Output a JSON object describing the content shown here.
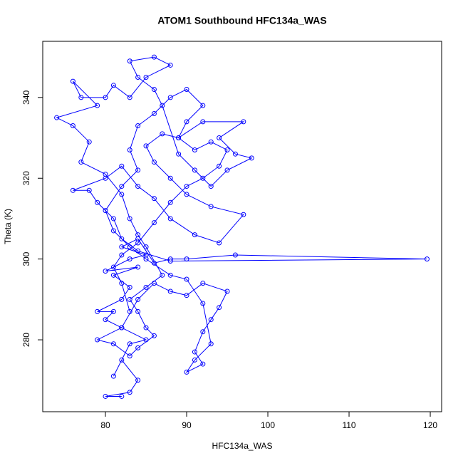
{
  "chart_data": {
    "type": "line",
    "title": "ATOM1 Southbound HFC134a_WAS",
    "x_label": "HFC134a_WAS",
    "y_label": "Theta (K)",
    "color": "#0000ff",
    "markers": true,
    "x": [
      82,
      80,
      83,
      84,
      82,
      81,
      83,
      85,
      82,
      80,
      81,
      79,
      82,
      83,
      81,
      84,
      80,
      83,
      85,
      82,
      84,
      86,
      88,
      90,
      96,
      119.6,
      88,
      84,
      82,
      81,
      79,
      78,
      76,
      80,
      82,
      84,
      86,
      88,
      91,
      94,
      97,
      93,
      90,
      88,
      86,
      85,
      87,
      89,
      92,
      97,
      94,
      96,
      98,
      95,
      93,
      91,
      89,
      87,
      86,
      84,
      83,
      86,
      88,
      85,
      83,
      81,
      80,
      77,
      76,
      79,
      74,
      76,
      78,
      77,
      80,
      82,
      83,
      84,
      85,
      87,
      85,
      83,
      84,
      85,
      86,
      84,
      83,
      81,
      79,
      82,
      84,
      86,
      88,
      90,
      92,
      95,
      94,
      93,
      92,
      91,
      92,
      90,
      91,
      93,
      92,
      90,
      88,
      85,
      83,
      81,
      80,
      82,
      84,
      83,
      84,
      86,
      88,
      90,
      92,
      90,
      89,
      91,
      93,
      95,
      94,
      92,
      90,
      88,
      86,
      84,
      82,
      81,
      82,
      83
    ],
    "values": [
      266,
      266,
      267,
      270,
      275,
      271,
      279,
      280,
      283,
      285,
      287,
      287,
      290,
      293,
      296,
      298,
      297,
      300,
      301,
      303,
      305,
      299,
      300,
      300,
      301,
      300,
      299.5,
      302,
      305,
      310,
      314,
      317,
      317,
      320,
      323,
      318,
      315,
      310,
      306,
      304,
      311,
      313,
      316,
      320,
      324,
      328,
      331,
      330,
      334,
      334,
      330,
      326,
      325,
      322,
      318,
      322,
      326,
      338,
      342,
      345,
      349,
      350,
      348,
      345,
      340,
      343,
      340,
      340,
      344,
      338,
      335,
      333,
      329,
      324,
      321,
      316,
      310,
      306,
      303,
      296,
      293,
      290,
      287,
      283,
      281,
      278,
      276,
      279,
      280,
      283,
      290,
      294,
      292,
      291,
      294,
      292,
      288,
      285,
      282,
      277,
      274,
      272,
      275,
      279,
      289,
      295,
      296,
      300,
      303,
      307,
      312,
      318,
      322,
      327,
      333,
      336,
      340,
      342,
      338,
      334,
      330,
      327,
      329,
      327,
      323,
      320,
      318,
      314,
      309,
      304,
      301,
      298,
      294,
      287
    ],
    "xlim": [
      72.28,
      121.4
    ],
    "ylim": [
      262.2,
      353.9
    ],
    "xticks": [
      80,
      90,
      100,
      110,
      120
    ],
    "yticks": [
      280,
      300,
      320,
      340
    ]
  }
}
